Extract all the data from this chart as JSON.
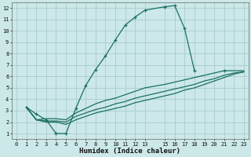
{
  "xlabel": "Humidex (Indice chaleur)",
  "bg_color": "#cce8e8",
  "grid_color": "#aacccc",
  "line_color": "#1a7060",
  "xlim": [
    -0.5,
    23.5
  ],
  "ylim": [
    0.5,
    12.5
  ],
  "xticks": [
    0,
    1,
    2,
    3,
    4,
    5,
    6,
    7,
    8,
    9,
    10,
    11,
    12,
    13,
    15,
    16,
    17,
    18,
    19,
    20,
    21,
    22,
    23
  ],
  "yticks": [
    1,
    2,
    3,
    4,
    5,
    6,
    7,
    8,
    9,
    10,
    11,
    12
  ],
  "line1_x": [
    1,
    2,
    3,
    4,
    5,
    6,
    7,
    8,
    9,
    10,
    11,
    12,
    13,
    15,
    16,
    17,
    18
  ],
  "line1_y": [
    3.3,
    2.7,
    2.2,
    1.0,
    1.0,
    3.2,
    5.2,
    6.6,
    7.8,
    9.2,
    10.5,
    11.2,
    11.8,
    12.1,
    12.2,
    10.2,
    6.5
  ],
  "line2_x": [
    1,
    2,
    3,
    4,
    5,
    6,
    7,
    8,
    9,
    10,
    11,
    12,
    13,
    15,
    16,
    17,
    18,
    19,
    20,
    21,
    22,
    23
  ],
  "line2_y": [
    3.3,
    2.2,
    2.3,
    2.3,
    2.2,
    2.8,
    3.2,
    3.6,
    3.9,
    4.1,
    4.4,
    4.7,
    5.0,
    5.3,
    5.5,
    5.7,
    5.9,
    6.1,
    6.3,
    6.5,
    6.5,
    6.5
  ],
  "line3_x": [
    1,
    2,
    3,
    4,
    5,
    6,
    7,
    8,
    9,
    10,
    11,
    12,
    13,
    15,
    16,
    17,
    18,
    19,
    20,
    21,
    22,
    23
  ],
  "line3_y": [
    3.3,
    2.2,
    2.1,
    2.1,
    2.0,
    2.5,
    2.8,
    3.1,
    3.3,
    3.6,
    3.8,
    4.1,
    4.3,
    4.7,
    4.9,
    5.1,
    5.3,
    5.6,
    5.8,
    6.1,
    6.3,
    6.4
  ],
  "line4_x": [
    1,
    2,
    3,
    4,
    5,
    6,
    7,
    8,
    9,
    10,
    11,
    12,
    13,
    15,
    16,
    17,
    18,
    19,
    20,
    21,
    22,
    23
  ],
  "line4_y": [
    3.3,
    2.2,
    2.0,
    2.0,
    1.8,
    2.2,
    2.5,
    2.8,
    3.0,
    3.2,
    3.4,
    3.7,
    3.9,
    4.3,
    4.5,
    4.8,
    5.0,
    5.3,
    5.6,
    5.9,
    6.2,
    6.4
  ],
  "tick_fontsize": 5.0,
  "xlabel_fontsize": 6.5
}
